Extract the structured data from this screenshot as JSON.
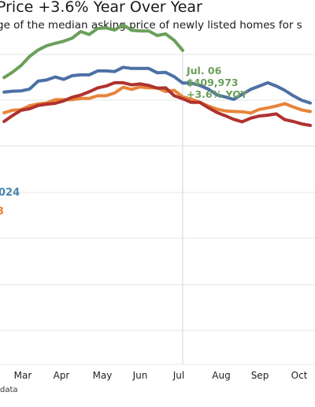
{
  "title": "Price +3.6% Year Over Year",
  "subtitle": "ge of the median asking price of newly listed homes for s",
  "source_fragment": "data",
  "chart_data": {
    "type": "line",
    "x_months": [
      "Mar",
      "Apr",
      "May",
      "Jun",
      "Jul",
      "Aug",
      "Sep",
      "Oct"
    ],
    "ylim": [
      292000,
      424000
    ],
    "grid": "horizontal",
    "series": [
      {
        "name": "",
        "color": "#6aa05a",
        "x": [
          6.0,
          6.25,
          6.5,
          6.75,
          7.0,
          7.25,
          7.5,
          7.75,
          8.0,
          8.25,
          8.5,
          8.75,
          9.0,
          9.25,
          9.5,
          9.75,
          10.0,
          10.25,
          10.5,
          10.75,
          11.0,
          11.25
        ],
        "values": [
          401000,
          402800,
          405000,
          408000,
          410100,
          411500,
          412300,
          413000,
          414000,
          416200,
          415200,
          417200,
          417400,
          416700,
          418400,
          416600,
          416400,
          416400,
          414900,
          415400,
          413300,
          409973
        ]
      },
      {
        "name": "",
        "color": "#4d70a5",
        "x": [
          6.0,
          6.25,
          6.5,
          6.75,
          7.0,
          7.25,
          7.5,
          7.75,
          8.0,
          8.25,
          8.5,
          8.75,
          9.0,
          9.25,
          9.5,
          9.75,
          10.0,
          10.25,
          10.5,
          10.75,
          11.0,
          11.25,
          11.5,
          11.75,
          12.0,
          12.25,
          12.5,
          12.75,
          13.0,
          13.25,
          13.5,
          13.75,
          14.0,
          14.25,
          14.5,
          14.75,
          15.0
        ],
        "values": [
          396200,
          396500,
          396600,
          397200,
          399800,
          400200,
          401200,
          400400,
          401600,
          401900,
          401900,
          403200,
          403200,
          403000,
          404400,
          404000,
          404000,
          404000,
          402600,
          402700,
          401300,
          399200,
          399200,
          398400,
          397200,
          395300,
          394600,
          393800,
          395500,
          397100,
          398200,
          399300,
          398200,
          396800,
          395000,
          393500,
          392600
        ]
      },
      {
        "name": "",
        "color": "#e8843a",
        "x": [
          6.0,
          6.25,
          6.5,
          6.75,
          7.0,
          7.25,
          7.5,
          7.75,
          8.0,
          8.25,
          8.5,
          8.75,
          9.0,
          9.25,
          9.5,
          9.75,
          10.0,
          10.25,
          10.5,
          10.75,
          11.0,
          11.25,
          11.5,
          11.75,
          12.0,
          12.25,
          12.5,
          12.75,
          13.0,
          13.25,
          13.5,
          13.75,
          14.0,
          14.25,
          14.5,
          14.75,
          15.0
        ],
        "values": [
          389400,
          390200,
          390400,
          391700,
          392300,
          392600,
          393700,
          393700,
          393700,
          394100,
          394100,
          395000,
          395000,
          395900,
          397800,
          397100,
          397900,
          397600,
          397600,
          396400,
          396800,
          394600,
          393900,
          392900,
          391600,
          390600,
          390000,
          389800,
          389700,
          389300,
          390500,
          391000,
          391600,
          392400,
          391300,
          390300,
          389800
        ]
      },
      {
        "name": "",
        "color": "#b0322e",
        "x": [
          6.0,
          6.25,
          6.5,
          6.75,
          7.0,
          7.25,
          7.5,
          7.75,
          8.0,
          8.25,
          8.5,
          8.75,
          9.0,
          9.25,
          9.5,
          9.75,
          10.0,
          10.25,
          10.5,
          10.75,
          11.0,
          11.25,
          11.5,
          11.75,
          12.0,
          12.25,
          12.5,
          12.75,
          13.0,
          13.25,
          13.5,
          13.75,
          14.0,
          14.25,
          14.5,
          14.75,
          15.0
        ],
        "values": [
          386500,
          388500,
          390200,
          390700,
          391800,
          392200,
          392500,
          393300,
          394500,
          395200,
          396300,
          397600,
          398200,
          399300,
          399300,
          398600,
          398900,
          398400,
          397500,
          397600,
          395000,
          394000,
          392800,
          392800,
          391100,
          389500,
          388400,
          387200,
          386400,
          387600,
          388300,
          388600,
          389000,
          387100,
          386500,
          385700,
          385200
        ]
      }
    ],
    "annotations": [
      {
        "date": "Jul. 06",
        "value": "$409,973",
        "yoy": "+3.6% YOY"
      },
      {
        "label": "024"
      },
      {
        "label": "3"
      }
    ]
  }
}
